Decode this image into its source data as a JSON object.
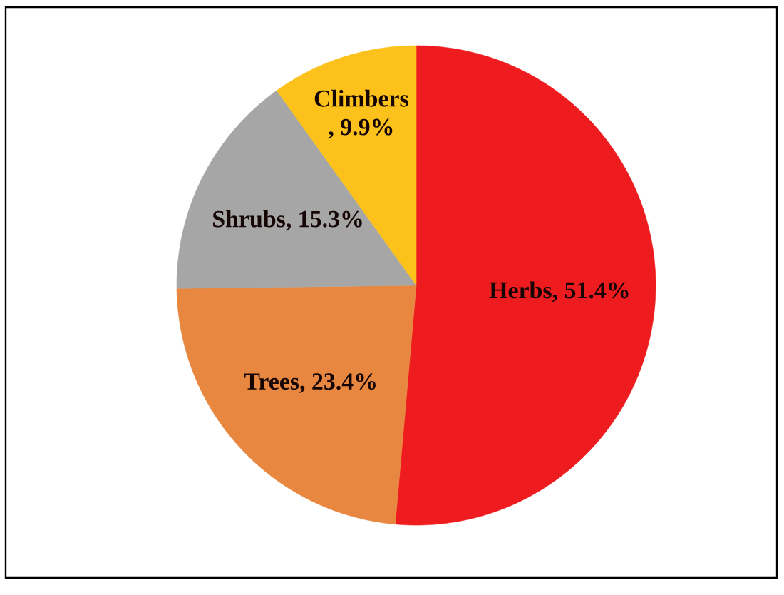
{
  "chart_data": {
    "type": "pie",
    "categories": [
      "Herbs",
      "Trees",
      "Shrubs",
      "Climbers"
    ],
    "values": [
      51.4,
      23.4,
      15.3,
      9.9
    ],
    "colors": [
      "#ee1c1f",
      "#e8873f",
      "#a6a6a6",
      "#fcc21b"
    ],
    "value_labels": [
      ", 51.4%",
      ", 23.4%",
      ", 15.3%",
      ", 9.9%"
    ]
  }
}
